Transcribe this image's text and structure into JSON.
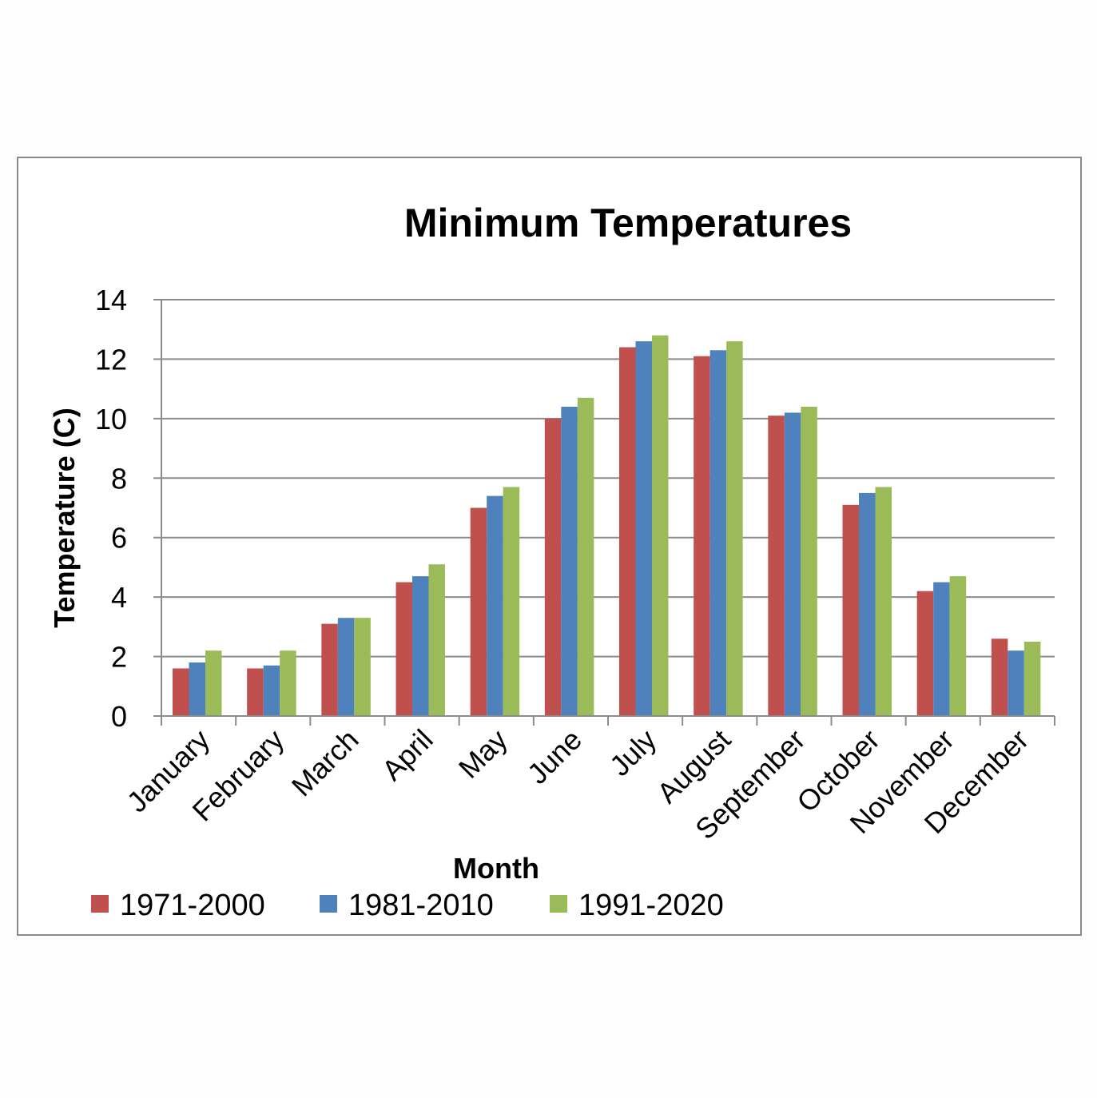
{
  "chart_data": {
    "type": "bar",
    "title": "Minimum Temperatures",
    "xlabel": "Month",
    "ylabel": "Temperature (C)",
    "ylim": [
      0,
      14
    ],
    "yticks": [
      0,
      2,
      4,
      6,
      8,
      10,
      12,
      14
    ],
    "grid": true,
    "legend_position": "bottom",
    "categories": [
      "January",
      "February",
      "March",
      "April",
      "May",
      "June",
      "July",
      "August",
      "September",
      "October",
      "November",
      "December"
    ],
    "series": [
      {
        "name": "1971-2000",
        "color": "#c0504d",
        "values": [
          1.6,
          1.6,
          3.1,
          4.5,
          7.0,
          10.0,
          12.4,
          12.1,
          10.1,
          7.1,
          4.2,
          2.6
        ]
      },
      {
        "name": "1981-2010",
        "color": "#4f81bd",
        "values": [
          1.8,
          1.7,
          3.3,
          4.7,
          7.4,
          10.4,
          12.6,
          12.3,
          10.2,
          7.5,
          4.5,
          2.2
        ]
      },
      {
        "name": "1991-2020",
        "color": "#9bbb59",
        "values": [
          2.2,
          2.2,
          3.3,
          5.1,
          7.7,
          10.7,
          12.8,
          12.6,
          10.4,
          7.7,
          4.7,
          2.5
        ]
      }
    ]
  }
}
